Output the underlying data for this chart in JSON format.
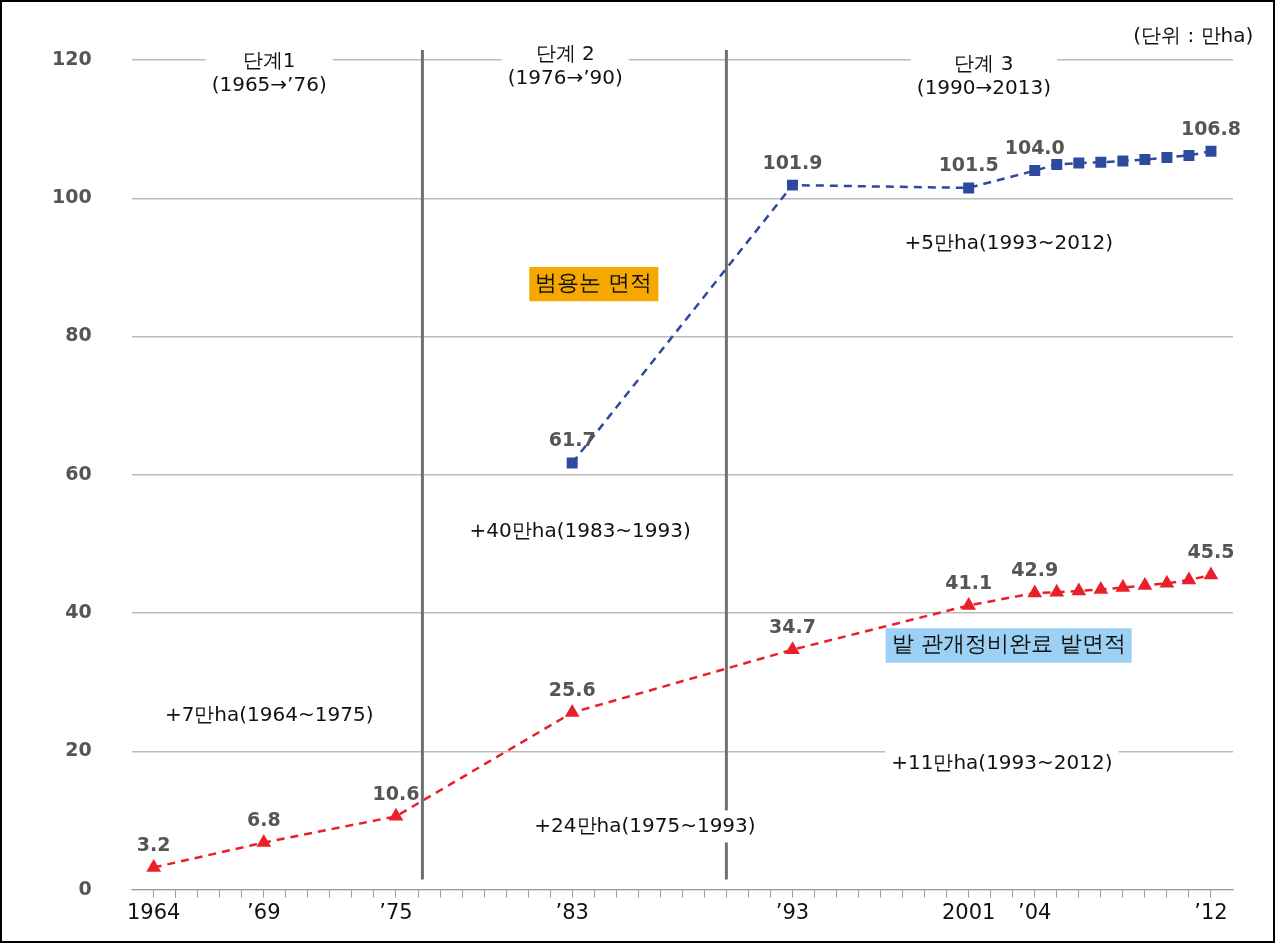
{
  "chart_data": {
    "type": "line",
    "line_style": "dashed",
    "grid": "y",
    "legend": false,
    "xlim": [
      1963,
      2013
    ],
    "xticks": [
      {
        "value": 1964,
        "label": "1964"
      },
      {
        "value": 1965,
        "label": null
      },
      {
        "value": 1966,
        "label": null
      },
      {
        "value": 1967,
        "label": null
      },
      {
        "value": 1968,
        "label": null
      },
      {
        "value": 1969,
        "label": "’69"
      },
      {
        "value": 1970,
        "label": null
      },
      {
        "value": 1971,
        "label": null
      },
      {
        "value": 1972,
        "label": null
      },
      {
        "value": 1973,
        "label": null
      },
      {
        "value": 1974,
        "label": null
      },
      {
        "value": 1975,
        "label": "’75"
      },
      {
        "value": 1976,
        "label": null
      },
      {
        "value": 1977,
        "label": null
      },
      {
        "value": 1978,
        "label": null
      },
      {
        "value": 1979,
        "label": null
      },
      {
        "value": 1980,
        "label": null
      },
      {
        "value": 1981,
        "label": null
      },
      {
        "value": 1982,
        "label": null
      },
      {
        "value": 1983,
        "label": "’83"
      },
      {
        "value": 1984,
        "label": null
      },
      {
        "value": 1985,
        "label": null
      },
      {
        "value": 1986,
        "label": null
      },
      {
        "value": 1987,
        "label": null
      },
      {
        "value": 1988,
        "label": null
      },
      {
        "value": 1989,
        "label": null
      },
      {
        "value": 1990,
        "label": null
      },
      {
        "value": 1991,
        "label": null
      },
      {
        "value": 1992,
        "label": null
      },
      {
        "value": 1993,
        "label": "’93"
      },
      {
        "value": 1994,
        "label": null
      },
      {
        "value": 1995,
        "label": null
      },
      {
        "value": 1996,
        "label": null
      },
      {
        "value": 1997,
        "label": null
      },
      {
        "value": 1998,
        "label": null
      },
      {
        "value": 1999,
        "label": null
      },
      {
        "value": 2000,
        "label": null
      },
      {
        "value": 2001,
        "label": "2001"
      },
      {
        "value": 2002,
        "label": null
      },
      {
        "value": 2003,
        "label": null
      },
      {
        "value": 2004,
        "label": "’04"
      },
      {
        "value": 2005,
        "label": null
      },
      {
        "value": 2006,
        "label": null
      },
      {
        "value": 2007,
        "label": null
      },
      {
        "value": 2008,
        "label": null
      },
      {
        "value": 2009,
        "label": null
      },
      {
        "value": 2010,
        "label": null
      },
      {
        "value": 2011,
        "label": null
      },
      {
        "value": 2012,
        "label": "’12"
      }
    ],
    "ylim": [
      0,
      120
    ],
    "yticks": [
      0,
      20,
      40,
      60,
      80,
      100,
      120
    ],
    "series": [
      {
        "name": "범용논 면적",
        "color": "#2e4a9e",
        "marker": "square",
        "x": [
          1983,
          1993,
          2001,
          2004,
          2005,
          2006,
          2007,
          2008,
          2009,
          2010,
          2011,
          2012
        ],
        "values": [
          61.7,
          101.9,
          101.5,
          104.0,
          104.9,
          105.1,
          105.2,
          105.4,
          105.6,
          105.9,
          106.2,
          106.8
        ],
        "value_labels": [
          "61.7",
          "101.9",
          "101.5",
          "104.0",
          null,
          null,
          null,
          null,
          null,
          null,
          null,
          "106.8"
        ]
      },
      {
        "name": "밭 관개정비완료 밭면적",
        "color": "#e8202a",
        "marker": "triangle",
        "x": [
          1964,
          1969,
          1975,
          1983,
          1993,
          2001,
          2004,
          2005,
          2006,
          2007,
          2008,
          2009,
          2010,
          2011,
          2012
        ],
        "values": [
          3.2,
          6.8,
          10.6,
          25.6,
          34.7,
          41.1,
          42.9,
          43.0,
          43.2,
          43.4,
          43.7,
          44.0,
          44.3,
          44.8,
          45.5
        ],
        "value_labels": [
          "3.2",
          "6.8",
          "10.6",
          "25.6",
          "34.7",
          "41.1",
          "42.9",
          null,
          null,
          null,
          null,
          null,
          null,
          null,
          "45.5"
        ]
      }
    ],
    "ref_lines": [
      {
        "axis": "x",
        "value": 1976.2,
        "color": "#707070"
      },
      {
        "axis": "x",
        "value": 1990,
        "color": "#707070"
      }
    ],
    "annotations": [
      "단계1\n(1965→’76)",
      "단계 2\n(1976→’90)",
      "단계 3\n(1990→2013)",
      "(단위 : 만ha)",
      "+5만ha(1993~2012)",
      "+40만ha(1983~1993)",
      "+7만ha(1964~1975)",
      "+24만ha(1975~1993)",
      "+11만ha(1993~2012)"
    ]
  }
}
